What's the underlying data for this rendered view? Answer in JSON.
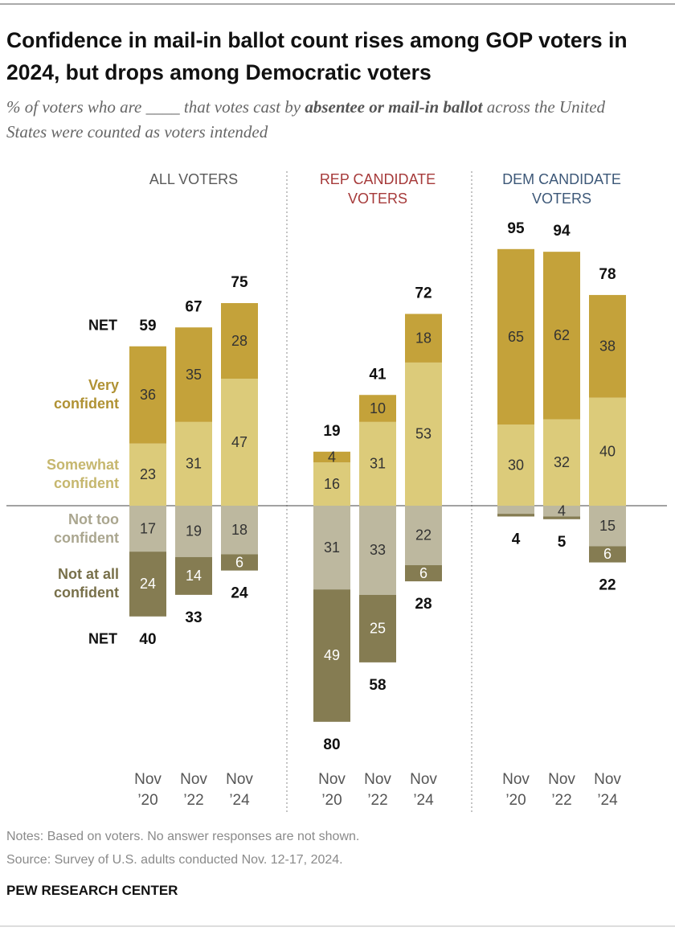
{
  "title": "Confidence in mail-in ballot count rises among GOP voters in 2024, but drops among Democratic voters",
  "subtitle": {
    "start": "% of voters who are ____ that votes cast by ",
    "emphasis": "absentee or mail-in ballot",
    "end": " across the United States were counted as voters intended"
  },
  "notes": "Notes: Based on voters. No answer responses are not shown.",
  "source": "Source: Survey of U.S. adults conducted Nov. 12-17, 2024.",
  "footer": "PEW RESEARCH CENTER",
  "chart_data": [
    {
      "type": "diverging_bar",
      "title": "ALL VOTERS",
      "title_color": "#5a5a5a",
      "categories": [
        "Nov ’20",
        "Nov ’22",
        "Nov ’24"
      ],
      "net_label": "NET",
      "series": [
        {
          "name": "Very confident",
          "color": "#c4a23a",
          "side": "positive",
          "label_color": "#333333",
          "values": [
            36,
            35,
            28
          ]
        },
        {
          "name": "Somewhat confident",
          "color": "#dccb7a",
          "side": "positive",
          "label_color": "#333333",
          "values": [
            23,
            31,
            47
          ]
        },
        {
          "name": "Not too confident",
          "color": "#bdb89f",
          "side": "negative",
          "label_color": "#333333",
          "values": [
            17,
            19,
            18
          ]
        },
        {
          "name": "Not at all confident",
          "color": "#857c52",
          "side": "negative",
          "label_color": "#ffffff",
          "values": [
            24,
            14,
            6
          ]
        }
      ],
      "net_positive": [
        59,
        67,
        75
      ],
      "net_negative": [
        40,
        33,
        24
      ]
    },
    {
      "type": "diverging_bar",
      "title": "REP CANDIDATE VOTERS",
      "title_color": "#a63a3a",
      "categories": [
        "Nov ’20",
        "Nov ’22",
        "Nov ’24"
      ],
      "series": [
        {
          "values": [
            4,
            10,
            18
          ]
        },
        {
          "values": [
            16,
            31,
            53
          ]
        },
        {
          "values": [
            31,
            33,
            22
          ]
        },
        {
          "values": [
            49,
            25,
            6
          ]
        }
      ],
      "net_positive": [
        19,
        41,
        72
      ],
      "net_negative": [
        80,
        58,
        28
      ]
    },
    {
      "type": "diverging_bar",
      "title": "DEM CANDIDATE VOTERS",
      "title_color": "#3d5878",
      "categories": [
        "Nov ’20",
        "Nov ’22",
        "Nov ’24"
      ],
      "series": [
        {
          "values": [
            65,
            62,
            38
          ]
        },
        {
          "values": [
            30,
            32,
            40
          ]
        },
        {
          "values": [
            3,
            4,
            15
          ]
        },
        {
          "values": [
            1,
            1,
            6
          ]
        }
      ],
      "net_positive": [
        95,
        94,
        78
      ],
      "net_negative": [
        4,
        5,
        22
      ]
    }
  ]
}
